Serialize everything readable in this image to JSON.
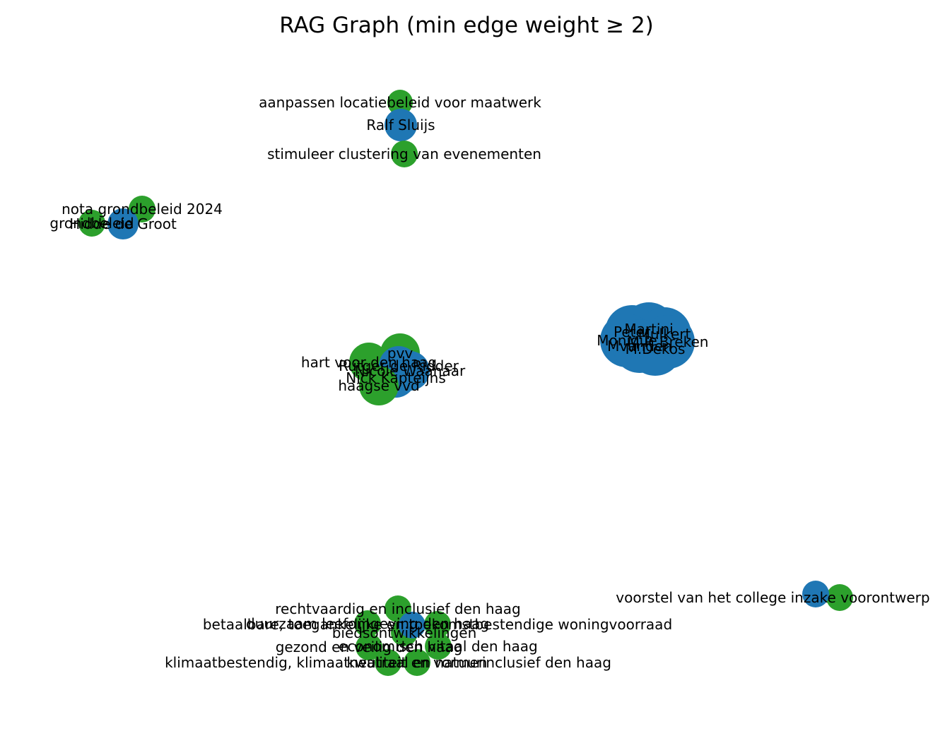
{
  "title": "RAG Graph (min edge weight ≥ 2)",
  "colors": {
    "person": "#1f77b4",
    "topic": "#2ca02c",
    "background": "#ffffff",
    "text": "#000000"
  },
  "nodes": [
    {
      "id": "aanpassen",
      "label": "aanpassen locatiebeleid voor maatwerk",
      "type": "topic"
    },
    {
      "id": "ralf",
      "label": "Ralf Sluijs",
      "type": "person"
    },
    {
      "id": "stimuleer",
      "label": "stimuleer clustering van evenementen",
      "type": "topic"
    },
    {
      "id": "nota",
      "label": "nota grondbeleid 2024",
      "type": "topic"
    },
    {
      "id": "grondbeleid",
      "label": "grondbeleid",
      "type": "topic"
    },
    {
      "id": "hidde",
      "label": "Hidde de Groot",
      "type": "person"
    },
    {
      "id": "martini",
      "label": "Martini",
      "type": "person"
    },
    {
      "id": "peter",
      "label": "Peter",
      "type": "person"
    },
    {
      "id": "mulkert",
      "label": "Mulkert",
      "type": "person"
    },
    {
      "id": "monique",
      "label": "Monique",
      "type": "person"
    },
    {
      "id": "mpbreken",
      "label": "M.P. Breken",
      "type": "person"
    },
    {
      "id": "mvanden",
      "label": "Mvanden",
      "type": "person"
    },
    {
      "id": "mdekos",
      "label": "M.Dekos",
      "type": "person"
    },
    {
      "id": "pvv",
      "label": "pvv",
      "type": "topic"
    },
    {
      "id": "hartvoor",
      "label": "hart voor den haag",
      "type": "topic"
    },
    {
      "id": "rutger",
      "label": "Rutger de Ridder",
      "type": "person"
    },
    {
      "id": "nicole",
      "label": "Nicole Waanaar",
      "type": "person"
    },
    {
      "id": "nick",
      "label": "Nick Kapteijns",
      "type": "person"
    },
    {
      "id": "haagsevvd",
      "label": "haagse vvd",
      "type": "topic"
    },
    {
      "id": "voorstel",
      "label": "voorstel van het college inzake voorontwerp herinrichting plein",
      "type": "topic"
    },
    {
      "id": "voorstel_person",
      "label": "",
      "type": "person"
    },
    {
      "id": "rechtvaardig",
      "label": "rechtvaardig en inclusief den haag",
      "type": "topic"
    },
    {
      "id": "betaalbare",
      "label": "betaalbare, toegankelijke en toekomstbestendige woningvoorraad",
      "type": "topic"
    },
    {
      "id": "duurzaam",
      "label": "duurzaam leefomgeving den haag",
      "type": "topic"
    },
    {
      "id": "bieds",
      "label": "biedsontwikkelingen",
      "type": "topic"
    },
    {
      "id": "gezond",
      "label": "gezond en veilig den haag",
      "type": "topic"
    },
    {
      "id": "economisch",
      "label": "economisch vitaal den haag",
      "type": "topic"
    },
    {
      "id": "klimaat",
      "label": "klimaatbestendig, klimaatneutraal en natuurinclusief den haag",
      "type": "topic"
    },
    {
      "id": "kwaliteit",
      "label": "kwaliteit en vormen",
      "type": "topic"
    },
    {
      "id": "cluster_person",
      "label": "",
      "type": "person"
    }
  ],
  "edges": [
    {
      "source": "ralf",
      "target": "aanpassen"
    },
    {
      "source": "ralf",
      "target": "stimuleer"
    },
    {
      "source": "hidde",
      "target": "nota"
    },
    {
      "source": "hidde",
      "target": "grondbeleid"
    },
    {
      "source": "voorstel_person",
      "target": "voorstel"
    }
  ]
}
